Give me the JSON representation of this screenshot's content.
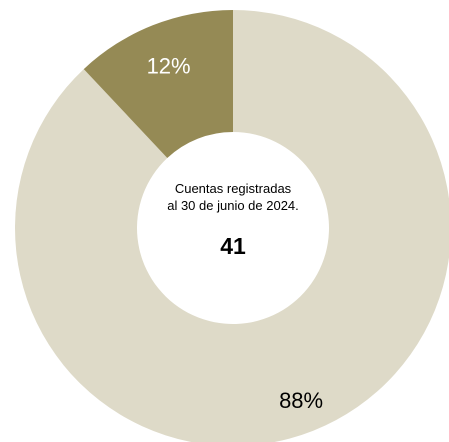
{
  "chart_data": {
    "type": "pie",
    "variant": "donut",
    "slices": [
      {
        "label": "88%",
        "value": 88,
        "color": "#dedac8",
        "label_color": "#000000"
      },
      {
        "label": "12%",
        "value": 12,
        "color": "#958a55",
        "label_color": "#ffffff"
      }
    ],
    "center": {
      "line1": "Cuentas registradas",
      "line2": "al 30 de junio de 2024.",
      "value": "41"
    },
    "legend": "none"
  }
}
